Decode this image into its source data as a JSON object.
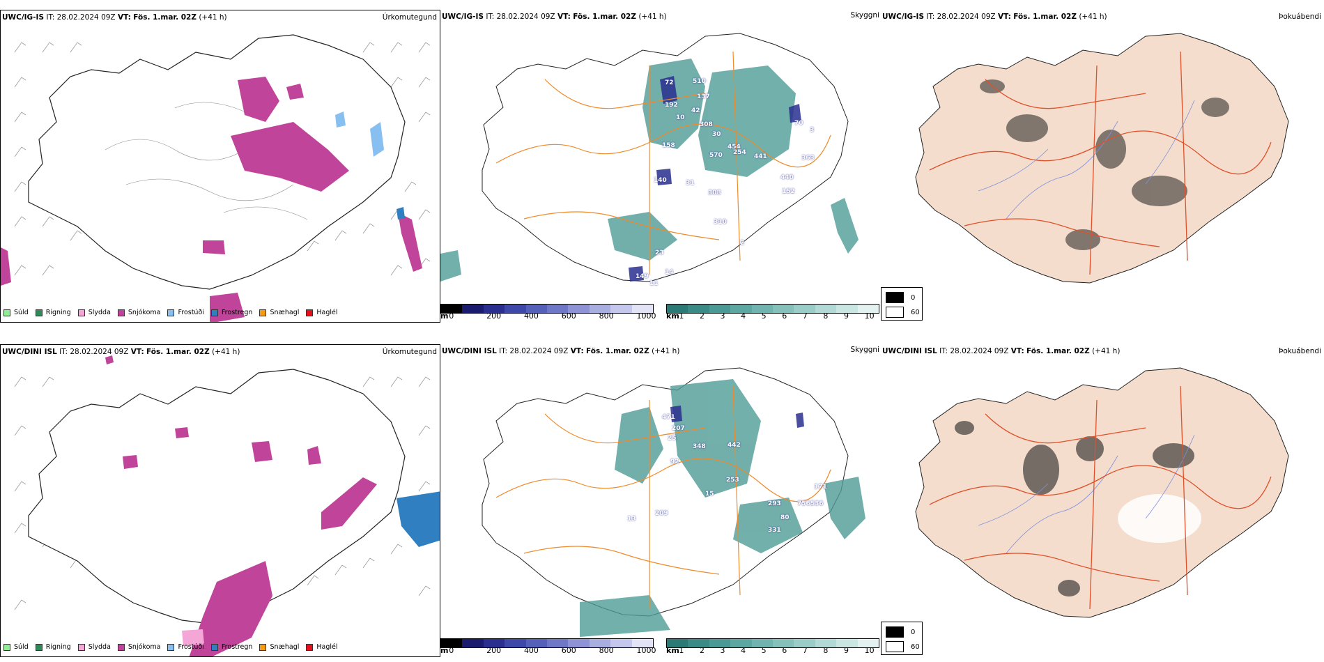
{
  "rows": [
    {
      "model": "UWC/IG-IS",
      "it_label": "IT:",
      "it_value": "28.02.2024 09Z",
      "vt_label": "VT:",
      "vt_value": "Fös. 1.mar. 02Z",
      "lead": "(+41 h)",
      "precip_title": "Úrkomutegund",
      "visibility_title": "Skyggni",
      "fog_title": "Þokuábendi"
    },
    {
      "model": "UWC/DINI ISL",
      "it_label": "IT:",
      "it_value": "28.02.2024 09Z",
      "vt_label": "VT:",
      "vt_value": "Fös. 1.mar. 02Z",
      "lead": "(+41 h)",
      "precip_title": "Úrkomutegund",
      "visibility_title": "Skyggni",
      "fog_title": "Þokuábendi"
    }
  ],
  "precip_legend": [
    {
      "label": "Súld",
      "color": "#90ee90"
    },
    {
      "label": "Rigning",
      "color": "#2e8b57"
    },
    {
      "label": "Slydda",
      "color": "#f4a6d7"
    },
    {
      "label": "Snjókoma",
      "color": "#c0449a"
    },
    {
      "label": "Frostúði",
      "color": "#87bff0"
    },
    {
      "label": "Frostregn",
      "color": "#2f7fc1"
    },
    {
      "label": "Snæhagl",
      "color": "#f39c12"
    },
    {
      "label": "Haglél",
      "color": "#e3121b"
    }
  ],
  "ceiling_scale": {
    "unit": "m",
    "ticks": [
      "0",
      "200",
      "400",
      "600",
      "800",
      "1000"
    ],
    "colors": [
      "#000000",
      "#1a1a6e",
      "#2a2f8f",
      "#3d48a8",
      "#5560b8",
      "#6f78c6",
      "#8d93d4",
      "#a9aee0",
      "#c5c8ec",
      "#e2e4f6"
    ]
  },
  "visibility_scale": {
    "unit": "km",
    "ticks": [
      "1",
      "2",
      "3",
      "4",
      "5",
      "6",
      "7",
      "8",
      "9",
      "10"
    ],
    "colors": [
      "#2b7a78",
      "#3a8a88",
      "#4b9996",
      "#5da7a3",
      "#70b3af",
      "#85c0bb",
      "#9bcdc8",
      "#b2d9d5",
      "#c9e6e2",
      "#e3f2f0"
    ]
  },
  "fog_scale": {
    "min": "0",
    "max": "60"
  },
  "ceiling_labels_top": [
    "72",
    "510",
    "137",
    "42",
    "192",
    "10",
    "308",
    "158",
    "30",
    "454",
    "570",
    "254",
    "441",
    "70",
    "3",
    "363",
    "440",
    "152",
    "140",
    "31",
    "308",
    "310",
    "2",
    "23",
    "149",
    "11",
    "14"
  ],
  "ceiling_labels_bottom": [
    "471",
    "207",
    "25",
    "348",
    "442",
    "92",
    "253",
    "15",
    "171",
    "756536",
    "293",
    "80",
    "331",
    "209",
    "13"
  ],
  "colors": {
    "land_fog": "#f4ddcc",
    "roads": "#f08a2a",
    "roads_fog": "#e0502a",
    "rivers": "#7c8fe0",
    "snow": "#c0449a",
    "vis_teal": "#4f9c97",
    "ceiling_blue": "#2a2f8f"
  }
}
